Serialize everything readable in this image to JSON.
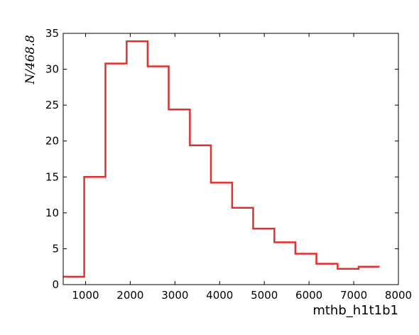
{
  "chart_data": {
    "type": "line",
    "style": "step-histogram",
    "title": "",
    "xlabel": "mthb_h1t1b1",
    "ylabel": "N/468.8",
    "xlim": [
      500,
      8000
    ],
    "ylim": [
      0,
      35
    ],
    "xticks": [
      1000,
      2000,
      3000,
      4000,
      5000,
      6000,
      7000,
      8000
    ],
    "yticks": [
      0,
      5,
      10,
      15,
      20,
      25,
      30,
      35
    ],
    "grid": false,
    "line_color": "#e03030",
    "bin_edges": [
      500,
      970,
      1445,
      1920,
      2390,
      2860,
      3335,
      3805,
      4280,
      4750,
      5225,
      5695,
      6165,
      6640,
      7110,
      7580
    ],
    "values": [
      1.1,
      15.0,
      30.8,
      33.9,
      30.4,
      24.4,
      19.4,
      14.2,
      10.7,
      7.8,
      5.9,
      4.3,
      2.9,
      2.2,
      2.5
    ]
  }
}
